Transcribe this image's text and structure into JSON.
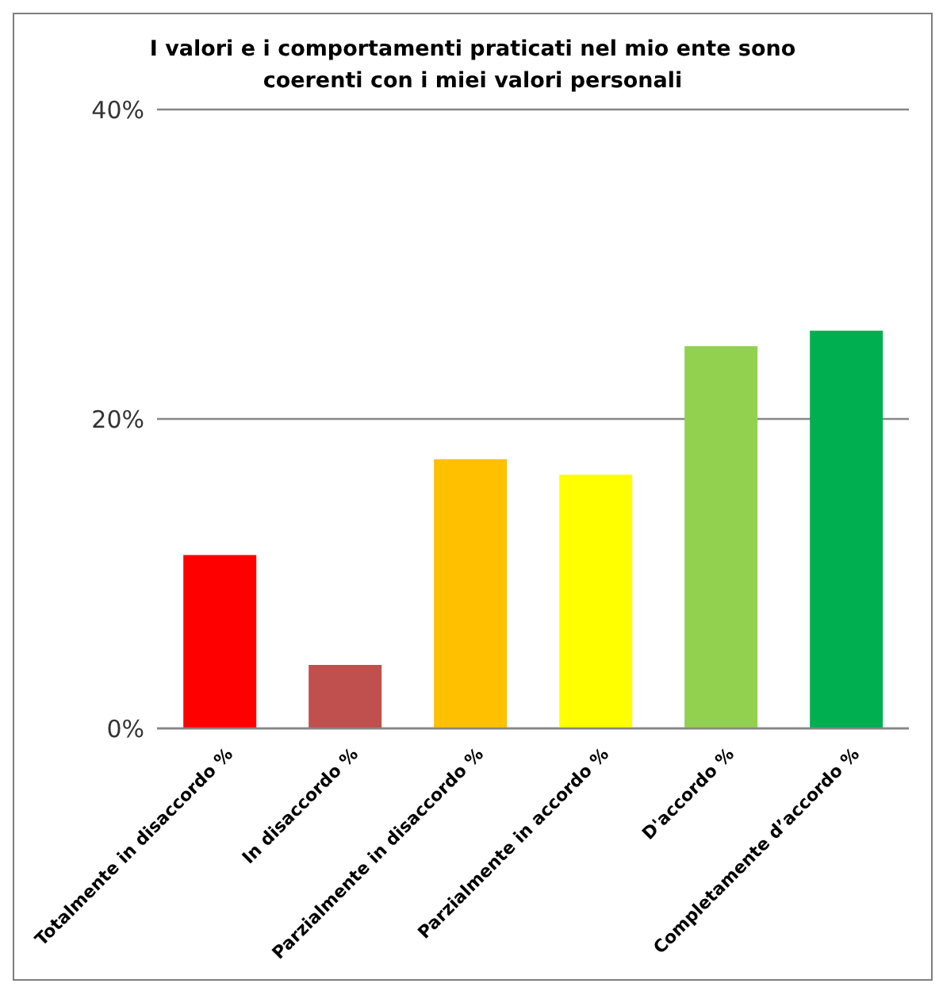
{
  "chart_data": {
    "type": "bar",
    "title": "I valori e i comportamenti praticati nel mio ente sono coerenti con i miei valori personali",
    "categories": [
      "Totalmente in disaccordo %",
      "In disaccordo %",
      "Parzialmente in disaccordo %",
      "Parzialmente in accordo %",
      "D'accordo %",
      "Completamente d’accordo %"
    ],
    "values": [
      11.2,
      4.1,
      17.4,
      16.4,
      24.7,
      25.7
    ],
    "colors": [
      "#ff0000",
      "#c0504d",
      "#ffc000",
      "#ffff00",
      "#92d050",
      "#00b050"
    ],
    "ylim": [
      0,
      40
    ],
    "yticks": [
      {
        "value": 0,
        "label": "0%"
      },
      {
        "value": 20,
        "label": "20%"
      },
      {
        "value": 40,
        "label": "40%"
      }
    ],
    "grid": "y"
  }
}
